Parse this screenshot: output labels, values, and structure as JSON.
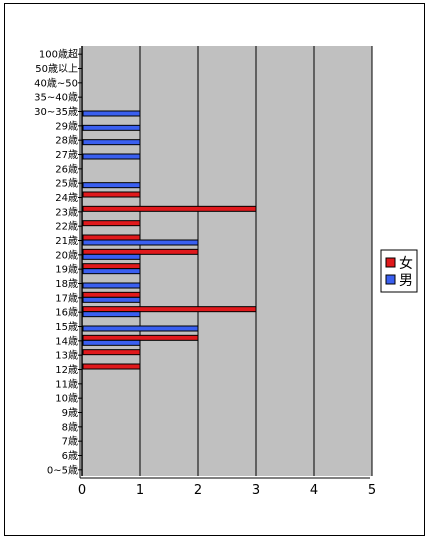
{
  "chart_data": {
    "type": "bar",
    "orientation": "horizontal",
    "categories": [
      "100歳超",
      "50歳以上",
      "40歳~50",
      "35~40歳",
      "30~35歳",
      "29歳",
      "28歳",
      "27歳",
      "26歳",
      "25歳",
      "24歳",
      "23歳",
      "22歳",
      "21歳",
      "20歳",
      "19歳",
      "18歳",
      "17歳",
      "16歳",
      "15歳",
      "14歳",
      "13歳",
      "12歳",
      "11歳",
      "10歳",
      "9歳",
      "8歳",
      "7歳",
      "6歳",
      "0~5歳"
    ],
    "series": [
      {
        "name": "女",
        "color": "#e0191c",
        "values": [
          0,
          0,
          0,
          0,
          0,
          0,
          0,
          0,
          0,
          0,
          1,
          3,
          1,
          1,
          2,
          1,
          0,
          1,
          3,
          0,
          2,
          1,
          1,
          0,
          0,
          0,
          0,
          0,
          0,
          0
        ]
      },
      {
        "name": "男",
        "color": "#3a5ff0",
        "values": [
          0,
          0,
          0,
          0,
          1,
          1,
          1,
          1,
          0,
          1,
          0,
          0,
          0,
          2,
          1,
          1,
          1,
          1,
          1,
          2,
          1,
          0,
          0,
          0,
          0,
          0,
          0,
          0,
          0,
          0
        ]
      }
    ],
    "x_ticks": [
      "0",
      "1",
      "2",
      "3",
      "4",
      "5"
    ],
    "xlim": [
      0,
      5
    ],
    "plot_background": "#c0c0c0",
    "grid": true,
    "legend_position": "right"
  }
}
